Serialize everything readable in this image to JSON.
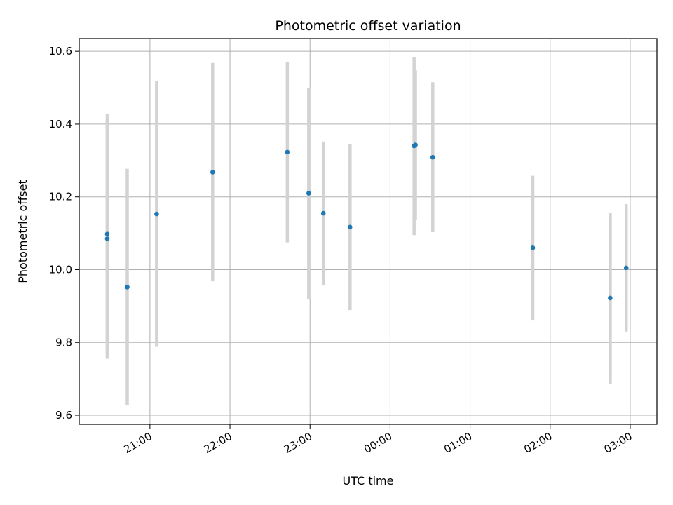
{
  "chart_data": {
    "type": "scatter",
    "title": "Photometric offset variation",
    "xlabel": "UTC time",
    "ylabel": "Photometric offset",
    "xlim": [
      "20:07",
      "03:20"
    ],
    "ylim": [
      9.575,
      10.635
    ],
    "x_ticks": [
      "21:00",
      "22:00",
      "23:00",
      "00:00",
      "01:00",
      "02:00",
      "03:00"
    ],
    "y_ticks": [
      9.6,
      9.8,
      10.0,
      10.2,
      10.4,
      10.6
    ],
    "grid": true,
    "marker_color": "#1f77b4",
    "errorbar_color": "#d3d3d3",
    "points": [
      {
        "t": "20:28",
        "y": 10.085,
        "err": 0.33
      },
      {
        "t": "20:28",
        "y": 10.098,
        "err": 0.33
      },
      {
        "t": "20:43",
        "y": 9.952,
        "err": 0.325
      },
      {
        "t": "21:05",
        "y": 10.153,
        "err": 0.365
      },
      {
        "t": "21:47",
        "y": 10.268,
        "err": 0.3
      },
      {
        "t": "22:43",
        "y": 10.323,
        "err": 0.248
      },
      {
        "t": "22:59",
        "y": 10.21,
        "err": 0.29
      },
      {
        "t": "23:10",
        "y": 10.155,
        "err": 0.197
      },
      {
        "t": "23:30",
        "y": 10.117,
        "err": 0.228
      },
      {
        "t": "00:18",
        "y": 10.34,
        "err": 0.245
      },
      {
        "t": "00:19",
        "y": 10.343,
        "err": 0.205
      },
      {
        "t": "00:32",
        "y": 10.309,
        "err": 0.206
      },
      {
        "t": "01:47",
        "y": 10.06,
        "err": 0.198
      },
      {
        "t": "02:45",
        "y": 9.922,
        "err": 0.235
      },
      {
        "t": "02:57",
        "y": 10.005,
        "err": 0.175
      }
    ]
  }
}
